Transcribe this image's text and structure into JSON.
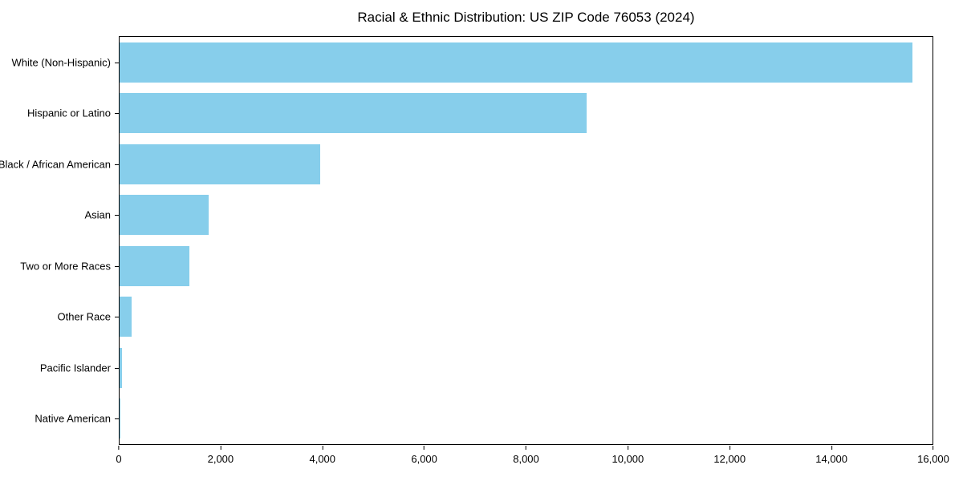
{
  "chart_data": {
    "type": "bar",
    "orientation": "horizontal",
    "title": "Racial & Ethnic Distribution: US ZIP Code 76053 (2024)",
    "categories": [
      "White (Non-Hispanic)",
      "Hispanic or Latino",
      "Black / African American",
      "Asian",
      "Two or More Races",
      "Other Race",
      "Pacific Islander",
      "Native American"
    ],
    "values": [
      15600,
      9200,
      3950,
      1750,
      1380,
      240,
      55,
      15
    ],
    "xlabel": "",
    "ylabel": "",
    "xlim": [
      0,
      16000
    ],
    "x_ticks": [
      0,
      2000,
      4000,
      6000,
      8000,
      10000,
      12000,
      14000,
      16000
    ],
    "x_tick_labels": [
      "0",
      "2,000",
      "4,000",
      "6,000",
      "8,000",
      "10,000",
      "12,000",
      "14,000",
      "16,000"
    ],
    "bar_color": "#87CEEB",
    "grid": false,
    "legend": false
  }
}
